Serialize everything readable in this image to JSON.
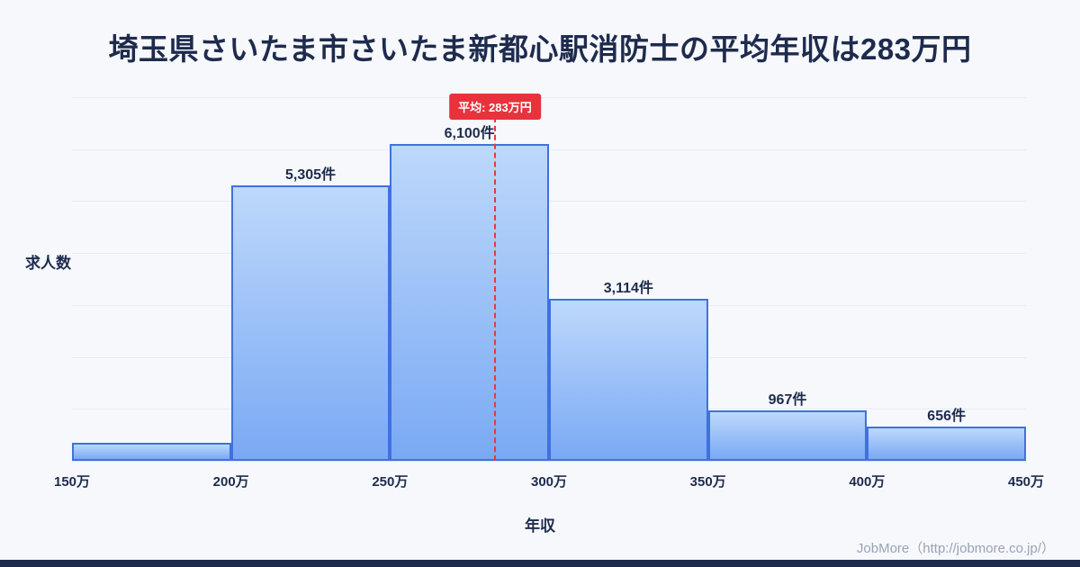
{
  "title": "埼玉県さいたま市さいたま新都心駅消防士の平均年収は283万円",
  "axis": {
    "ylabel": "求人数",
    "xlabel": "年収"
  },
  "footer": {
    "credit": "JobMore（http://jobmore.co.jp/）"
  },
  "colors": {
    "background": "#f6f8fc",
    "title_text": "#1e2b4d",
    "bar_fill_top": "#bdd8fb",
    "bar_fill_bottom": "#7aa9f4",
    "bar_border": "#3f72dd",
    "average_red": "#e8323c",
    "gridline": "#e7edf6",
    "footer_text": "#9aa3b5"
  },
  "chart_data": {
    "type": "bar",
    "title": "埼玉県さいたま市さいたま新都心駅消防士の平均年収は283万円",
    "xlabel": "年収",
    "ylabel": "求人数",
    "bin_edge_labels": [
      "150万",
      "200万",
      "250万",
      "300万",
      "350万",
      "400万",
      "450万"
    ],
    "x_domain": [
      150,
      450
    ],
    "values": [
      350,
      5305,
      6100,
      3114,
      967,
      656
    ],
    "bar_labels": [
      "",
      "5,305件",
      "6,100件",
      "3,114件",
      "967件",
      "656件"
    ],
    "ylim": [
      0,
      7000
    ],
    "grid": "horizontal",
    "average": {
      "value": 283,
      "label": "平均: 283万円"
    }
  }
}
